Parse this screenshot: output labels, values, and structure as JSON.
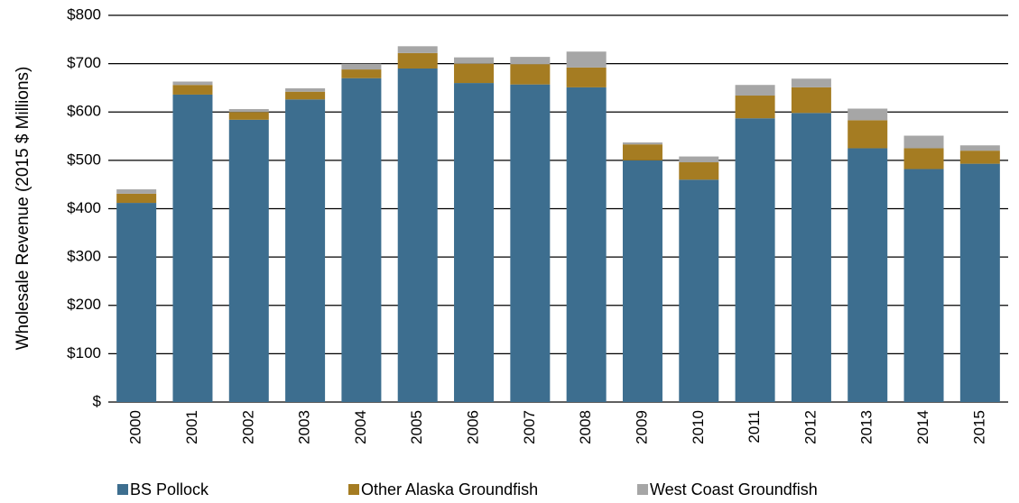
{
  "chart_data": {
    "type": "stacked_bar",
    "y_axis_label": "Wholesale Revenue (2015 $ Millions)",
    "categories": [
      "2000",
      "2001",
      "2002",
      "2003",
      "2004",
      "2005",
      "2006",
      "2007",
      "2008",
      "2009",
      "2010",
      "2011",
      "2012",
      "2013",
      "2014",
      "2015"
    ],
    "series": [
      {
        "name": "BS Pollock",
        "color": "#3d6e8f",
        "values": [
          412,
          636,
          584,
          626,
          670,
          690,
          660,
          657,
          651,
          500,
          460,
          587,
          598,
          525,
          482,
          493
        ]
      },
      {
        "name": "Other Alaska Groundfish",
        "color": "#a57c22",
        "values": [
          19,
          20,
          16,
          16,
          18,
          32,
          40,
          42,
          41,
          33,
          36,
          47,
          53,
          58,
          43,
          27
        ]
      },
      {
        "name": "West Coast Groundfish",
        "color": "#a6a6a6",
        "values": [
          9,
          7,
          6,
          7,
          12,
          14,
          13,
          15,
          33,
          4,
          12,
          22,
          18,
          24,
          26,
          11
        ]
      }
    ],
    "ylim": [
      0,
      800
    ],
    "yticks": [
      {
        "value": 0,
        "label": "$"
      },
      {
        "value": 100,
        "label": "$100"
      },
      {
        "value": 200,
        "label": "$200"
      },
      {
        "value": 300,
        "label": "$300"
      },
      {
        "value": 400,
        "label": "$400"
      },
      {
        "value": 500,
        "label": "$500"
      },
      {
        "value": 600,
        "label": "$600"
      },
      {
        "value": 700,
        "label": "$700"
      },
      {
        "value": 800,
        "label": "$800"
      }
    ],
    "grid": true,
    "legend": "bottom"
  }
}
